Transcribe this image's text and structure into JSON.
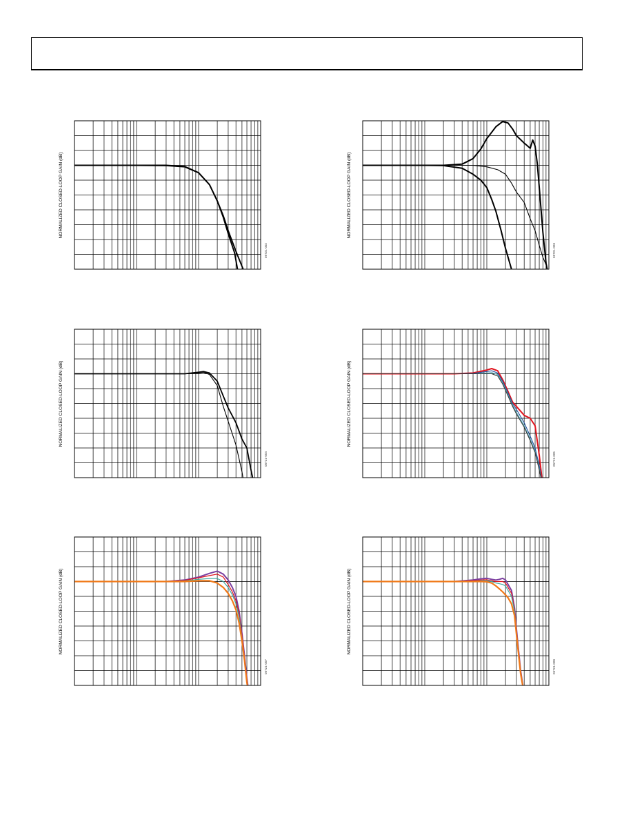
{
  "header": {
    "title": ""
  },
  "charts": [
    {
      "id": "fig-002",
      "fig_code": "05721-002",
      "ylabel": "NORMALIZED CLOSED-LOOP GAIN (dB)",
      "chart_data": {
        "type": "line",
        "xlog": true,
        "grid": true,
        "xlim": [
          0.1,
          100
        ],
        "ylim": [
          -9,
          1
        ],
        "series": [
          {
            "color": "#000000",
            "width": 1.9,
            "x": [
              0.1,
              0.3,
              1,
              3,
              6,
              10,
              15,
              20,
              25,
              30,
              40,
              50,
              60
            ],
            "y": [
              -2,
              -2,
              -2,
              -2,
              -2.08,
              -2.5,
              -3.3,
              -4.4,
              -5.4,
              -6.4,
              -7.8,
              -8.8,
              -9.6
            ]
          },
          {
            "color": "#000000",
            "width": 1.9,
            "x": [
              0.1,
              0.3,
              1,
              3,
              6,
              10,
              15,
              20,
              25,
              30,
              38,
              45
            ],
            "y": [
              -2,
              -2,
              -2,
              -2.02,
              -2.1,
              -2.5,
              -3.3,
              -4.4,
              -5.5,
              -6.6,
              -7.9,
              -9.6
            ]
          }
        ]
      }
    },
    {
      "id": "fig-003",
      "fig_code": "05721-003",
      "ylabel": "NORMALIZED CLOSED-LOOP GAIN (dB)",
      "chart_data": {
        "type": "line",
        "xlog": true,
        "grid": true,
        "xlim": [
          0.1,
          100
        ],
        "ylim": [
          -9,
          1
        ],
        "series": [
          {
            "color": "#000000",
            "width": 2.0,
            "x": [
              0.1,
              0.3,
              1,
              2,
              4,
              6,
              8,
              10,
              14,
              18,
              22,
              26,
              30,
              40,
              50,
              55,
              60,
              65,
              70,
              80,
              90,
              100
            ],
            "y": [
              -2,
              -2,
              -2,
              -2,
              -1.92,
              -1.55,
              -0.9,
              -0.2,
              0.6,
              0.95,
              0.85,
              0.45,
              0,
              -0.5,
              -0.85,
              -0.3,
              -0.7,
              -1.9,
              -3.5,
              -6.5,
              -8.6,
              -9.6
            ]
          },
          {
            "color": "#000000",
            "width": 1.1,
            "x": [
              0.1,
              0.3,
              1,
              3,
              6,
              10,
              15,
              20,
              25,
              30,
              40,
              50,
              60,
              70,
              80,
              90,
              100
            ],
            "y": [
              -2,
              -2,
              -2,
              -2,
              -2,
              -2.1,
              -2.3,
              -2.6,
              -3.2,
              -3.8,
              -4.5,
              -5.6,
              -6.4,
              -7.4,
              -8.2,
              -8.7,
              -9.6
            ]
          },
          {
            "color": "#000000",
            "width": 2.0,
            "x": [
              0.1,
              0.3,
              1,
              2,
              4,
              6,
              8,
              10,
              12,
              14,
              17,
              20,
              25,
              28
            ],
            "y": [
              -2,
              -2,
              -2,
              -2.02,
              -2.2,
              -2.6,
              -3.0,
              -3.5,
              -4.3,
              -5.1,
              -6.4,
              -7.6,
              -9.0,
              -9.6
            ]
          }
        ]
      }
    },
    {
      "id": "fig-004",
      "fig_code": "05721-004",
      "ylabel": "NORMALIZED CLOSED-LOOP GAIN (dB)",
      "chart_data": {
        "type": "line",
        "xlog": true,
        "grid": true,
        "xlim": [
          0.1,
          100
        ],
        "ylim": [
          -9,
          1
        ],
        "series": [
          {
            "color": "#000000",
            "width": 1.8,
            "x": [
              0.1,
              0.3,
              1,
              3,
              6,
              10,
              12,
              15,
              20,
              25,
              30,
              40,
              50,
              60,
              70,
              80
            ],
            "y": [
              -2,
              -2,
              -2,
              -2,
              -2,
              -1.9,
              -1.85,
              -1.95,
              -2.5,
              -3.5,
              -4.3,
              -5.3,
              -6.4,
              -7.0,
              -8.5,
              -9.6
            ]
          },
          {
            "color": "#000000",
            "width": 1.1,
            "x": [
              0.1,
              0.3,
              1,
              3,
              6,
              10,
              12,
              15,
              20,
              25,
              30,
              40,
              50,
              55
            ],
            "y": [
              -2,
              -2,
              -2,
              -2,
              -2,
              -1.95,
              -1.9,
              -2.05,
              -2.8,
              -4.2,
              -5.2,
              -6.8,
              -8.6,
              -9.6
            ]
          }
        ]
      }
    },
    {
      "id": "fig-005",
      "fig_code": "05721-005",
      "ylabel": "NORMALIZED CLOSED-LOOP GAIN (dB)",
      "chart_data": {
        "type": "line",
        "xlog": true,
        "grid": true,
        "xlim": [
          0.1,
          100
        ],
        "ylim": [
          -9,
          1
        ],
        "series": [
          {
            "color": "#e0141e",
            "width": 2.0,
            "x": [
              0.1,
              0.3,
              1,
              3,
              6,
              10,
              12,
              15,
              18,
              22,
              26,
              30,
              40,
              50,
              60,
              70,
              80
            ],
            "y": [
              -2,
              -2,
              -2,
              -2,
              -1.95,
              -1.75,
              -1.65,
              -1.8,
              -2.4,
              -3.2,
              -3.9,
              -4.2,
              -4.8,
              -5.0,
              -5.5,
              -7.5,
              -9.6
            ]
          },
          {
            "color": "#1f4e9c",
            "width": 1.1,
            "x": [
              0.1,
              0.3,
              1,
              3,
              6,
              10,
              12,
              15,
              18,
              22,
              26,
              30,
              40,
              50,
              60,
              70,
              80
            ],
            "y": [
              -2,
              -2,
              -2,
              -2,
              -1.97,
              -1.85,
              -1.8,
              -1.95,
              -2.5,
              -3.3,
              -4.0,
              -4.4,
              -5.3,
              -6.2,
              -7.0,
              -8.2,
              -9.6
            ]
          },
          {
            "color": "#4aa3b0",
            "width": 1.1,
            "x": [
              0.1,
              0.3,
              1,
              3,
              6,
              10,
              12,
              15,
              18,
              22,
              26,
              30,
              40,
              50,
              60,
              70,
              80
            ],
            "y": [
              -2,
              -2,
              -2,
              -2,
              -2,
              -1.95,
              -1.92,
              -2.05,
              -2.6,
              -3.4,
              -4.1,
              -4.6,
              -5.5,
              -6.4,
              -7.2,
              -8.4,
              -9.6
            ]
          },
          {
            "color": "#3a3a3a",
            "width": 1.1,
            "x": [
              0.1,
              0.3,
              1,
              3,
              6,
              10,
              12,
              15,
              18,
              22,
              26,
              30,
              40,
              50,
              60,
              70,
              80
            ],
            "y": [
              -2,
              -2,
              -2,
              -2,
              -2,
              -2,
              -2,
              -2.15,
              -2.7,
              -3.5,
              -4.2,
              -4.7,
              -5.6,
              -6.5,
              -7.3,
              -8.5,
              -9.6
            ]
          }
        ]
      }
    },
    {
      "id": "fig-007",
      "fig_code": "05721-007",
      "ylabel": "NORMALIZED CLOSED-LOOP GAIN (dB)",
      "chart_data": {
        "type": "line",
        "xlog": true,
        "grid": true,
        "xlim": [
          0.1,
          100
        ],
        "ylim": [
          -9,
          1
        ],
        "series": [
          {
            "color": "#7b3fa0",
            "width": 2.0,
            "x": [
              0.1,
              1,
              3,
              6,
              10,
              15,
              20,
              25,
              30,
              35,
              40,
              45,
              50,
              55,
              60,
              65
            ],
            "y": [
              -2,
              -2,
              -2,
              -1.9,
              -1.7,
              -1.45,
              -1.3,
              -1.5,
              -1.9,
              -2.4,
              -3.0,
              -4.0,
              -5.5,
              -7.0,
              -8.5,
              -9.6
            ]
          },
          {
            "color": "#e0141e",
            "width": 1.2,
            "x": [
              0.1,
              1,
              3,
              6,
              10,
              15,
              20,
              25,
              30,
              35,
              40,
              45,
              50,
              55,
              60,
              65
            ],
            "y": [
              -2,
              -2,
              -2,
              -1.92,
              -1.75,
              -1.6,
              -1.5,
              -1.7,
              -2.2,
              -2.7,
              -3.3,
              -4.2,
              -5.6,
              -7.1,
              -8.6,
              -9.6
            ]
          },
          {
            "color": "#3fa9a0",
            "width": 1.2,
            "x": [
              0.1,
              1,
              3,
              6,
              10,
              15,
              20,
              25,
              30,
              35,
              40,
              45,
              50,
              55,
              60,
              65
            ],
            "y": [
              -2,
              -2,
              -2,
              -1.96,
              -1.85,
              -1.8,
              -1.8,
              -2.0,
              -2.4,
              -2.9,
              -3.5,
              -4.4,
              -5.8,
              -7.2,
              -8.7,
              -9.6
            ]
          },
          {
            "color": "#f07a1a",
            "width": 2.2,
            "x": [
              0.1,
              1,
              3,
              6,
              10,
              15,
              20,
              25,
              30,
              35,
              40,
              45,
              50,
              55,
              60,
              65
            ],
            "y": [
              -2,
              -2,
              -2,
              -2,
              -1.95,
              -1.95,
              -2.1,
              -2.4,
              -2.8,
              -3.3,
              -3.9,
              -4.8,
              -6.0,
              -7.3,
              -8.8,
              -9.6
            ]
          }
        ]
      }
    },
    {
      "id": "fig-008",
      "fig_code": "05721-008",
      "ylabel": "NORMALIZED CLOSED-LOOP GAIN (dB)",
      "chart_data": {
        "type": "line",
        "xlog": true,
        "grid": true,
        "xlim": [
          0.1,
          100
        ],
        "ylim": [
          -9,
          1
        ],
        "series": [
          {
            "color": "#7b3fa0",
            "width": 2.0,
            "x": [
              0.1,
              1,
              3,
              6,
              8,
              10,
              12,
              14,
              16,
              18,
              20,
              22,
              25,
              28,
              31,
              35,
              40
            ],
            "y": [
              -2,
              -2,
              -2,
              -1.9,
              -1.82,
              -1.78,
              -1.85,
              -1.9,
              -1.85,
              -1.78,
              -1.9,
              -2.2,
              -2.6,
              -3.8,
              -5.8,
              -8.0,
              -9.6
            ]
          },
          {
            "color": "#e0141e",
            "width": 1.2,
            "x": [
              0.1,
              1,
              3,
              6,
              8,
              10,
              12,
              14,
              16,
              18,
              20,
              22,
              25,
              28,
              31,
              35,
              40
            ],
            "y": [
              -2,
              -2,
              -2,
              -1.95,
              -1.9,
              -1.88,
              -1.95,
              -2.0,
              -2.0,
              -2.0,
              -2.1,
              -2.4,
              -2.8,
              -3.9,
              -5.9,
              -8.0,
              -9.6
            ]
          },
          {
            "color": "#3fa9a0",
            "width": 1.2,
            "x": [
              0.1,
              1,
              3,
              6,
              8,
              10,
              12,
              14,
              16,
              18,
              20,
              22,
              25,
              28,
              31,
              35,
              40
            ],
            "y": [
              -2,
              -2,
              -2,
              -1.98,
              -1.95,
              -1.95,
              -2.0,
              -2.1,
              -2.15,
              -2.2,
              -2.3,
              -2.6,
              -3.0,
              -4.0,
              -6.0,
              -8.1,
              -9.6
            ]
          },
          {
            "color": "#f07a1a",
            "width": 2.2,
            "x": [
              0.1,
              1,
              3,
              6,
              8,
              10,
              12,
              14,
              16,
              18,
              20,
              22,
              25,
              28,
              31,
              35,
              40
            ],
            "y": [
              -2,
              -2,
              -2,
              -2,
              -2,
              -2.02,
              -2.1,
              -2.3,
              -2.5,
              -2.7,
              -2.9,
              -3.1,
              -3.5,
              -4.3,
              -6.1,
              -8.2,
              -9.6
            ]
          }
        ]
      }
    }
  ]
}
